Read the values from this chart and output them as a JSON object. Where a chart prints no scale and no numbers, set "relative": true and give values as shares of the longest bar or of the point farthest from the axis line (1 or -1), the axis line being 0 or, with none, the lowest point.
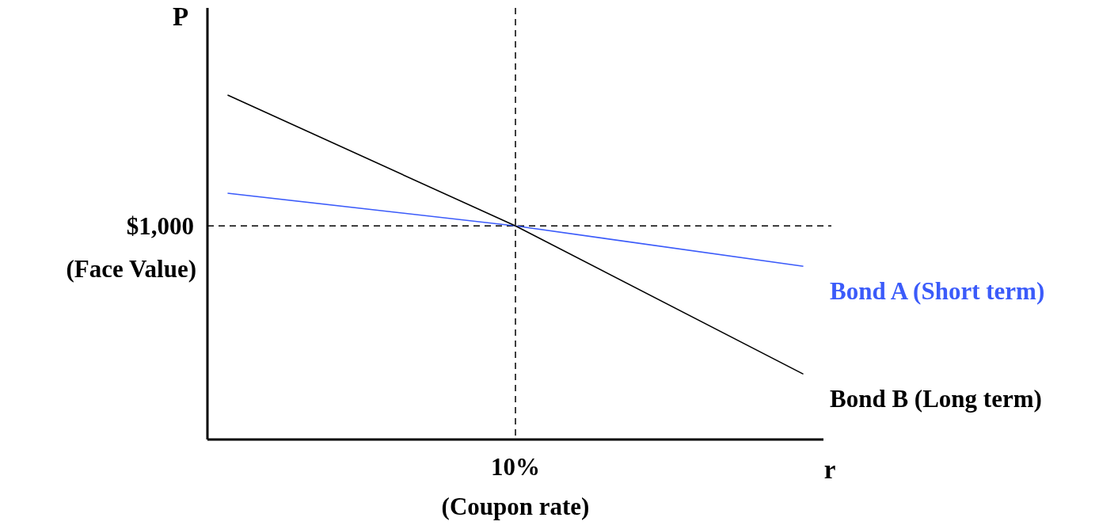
{
  "chart_data": {
    "type": "line",
    "relative": true,
    "xlabel": "r",
    "ylabel": "P",
    "categories": [
      null,
      null,
      null
    ],
    "series": [
      {
        "name": "Bond A (Short term)",
        "color": "#3b5bfa",
        "values": [
          0.715,
          0.62,
          0.503
        ]
      },
      {
        "name": "Bond B (Long term)",
        "color": "#000000",
        "values": [
          1,
          0.62,
          0.19
        ]
      }
    ],
    "ref_lines": [
      {
        "axis": "y",
        "value": 0.62,
        "label": "(Face Value)",
        "line_style": "dashed"
      }
    ],
    "annotations": [
      "10%",
      "(Coupon rate)",
      "$1,000"
    ]
  }
}
